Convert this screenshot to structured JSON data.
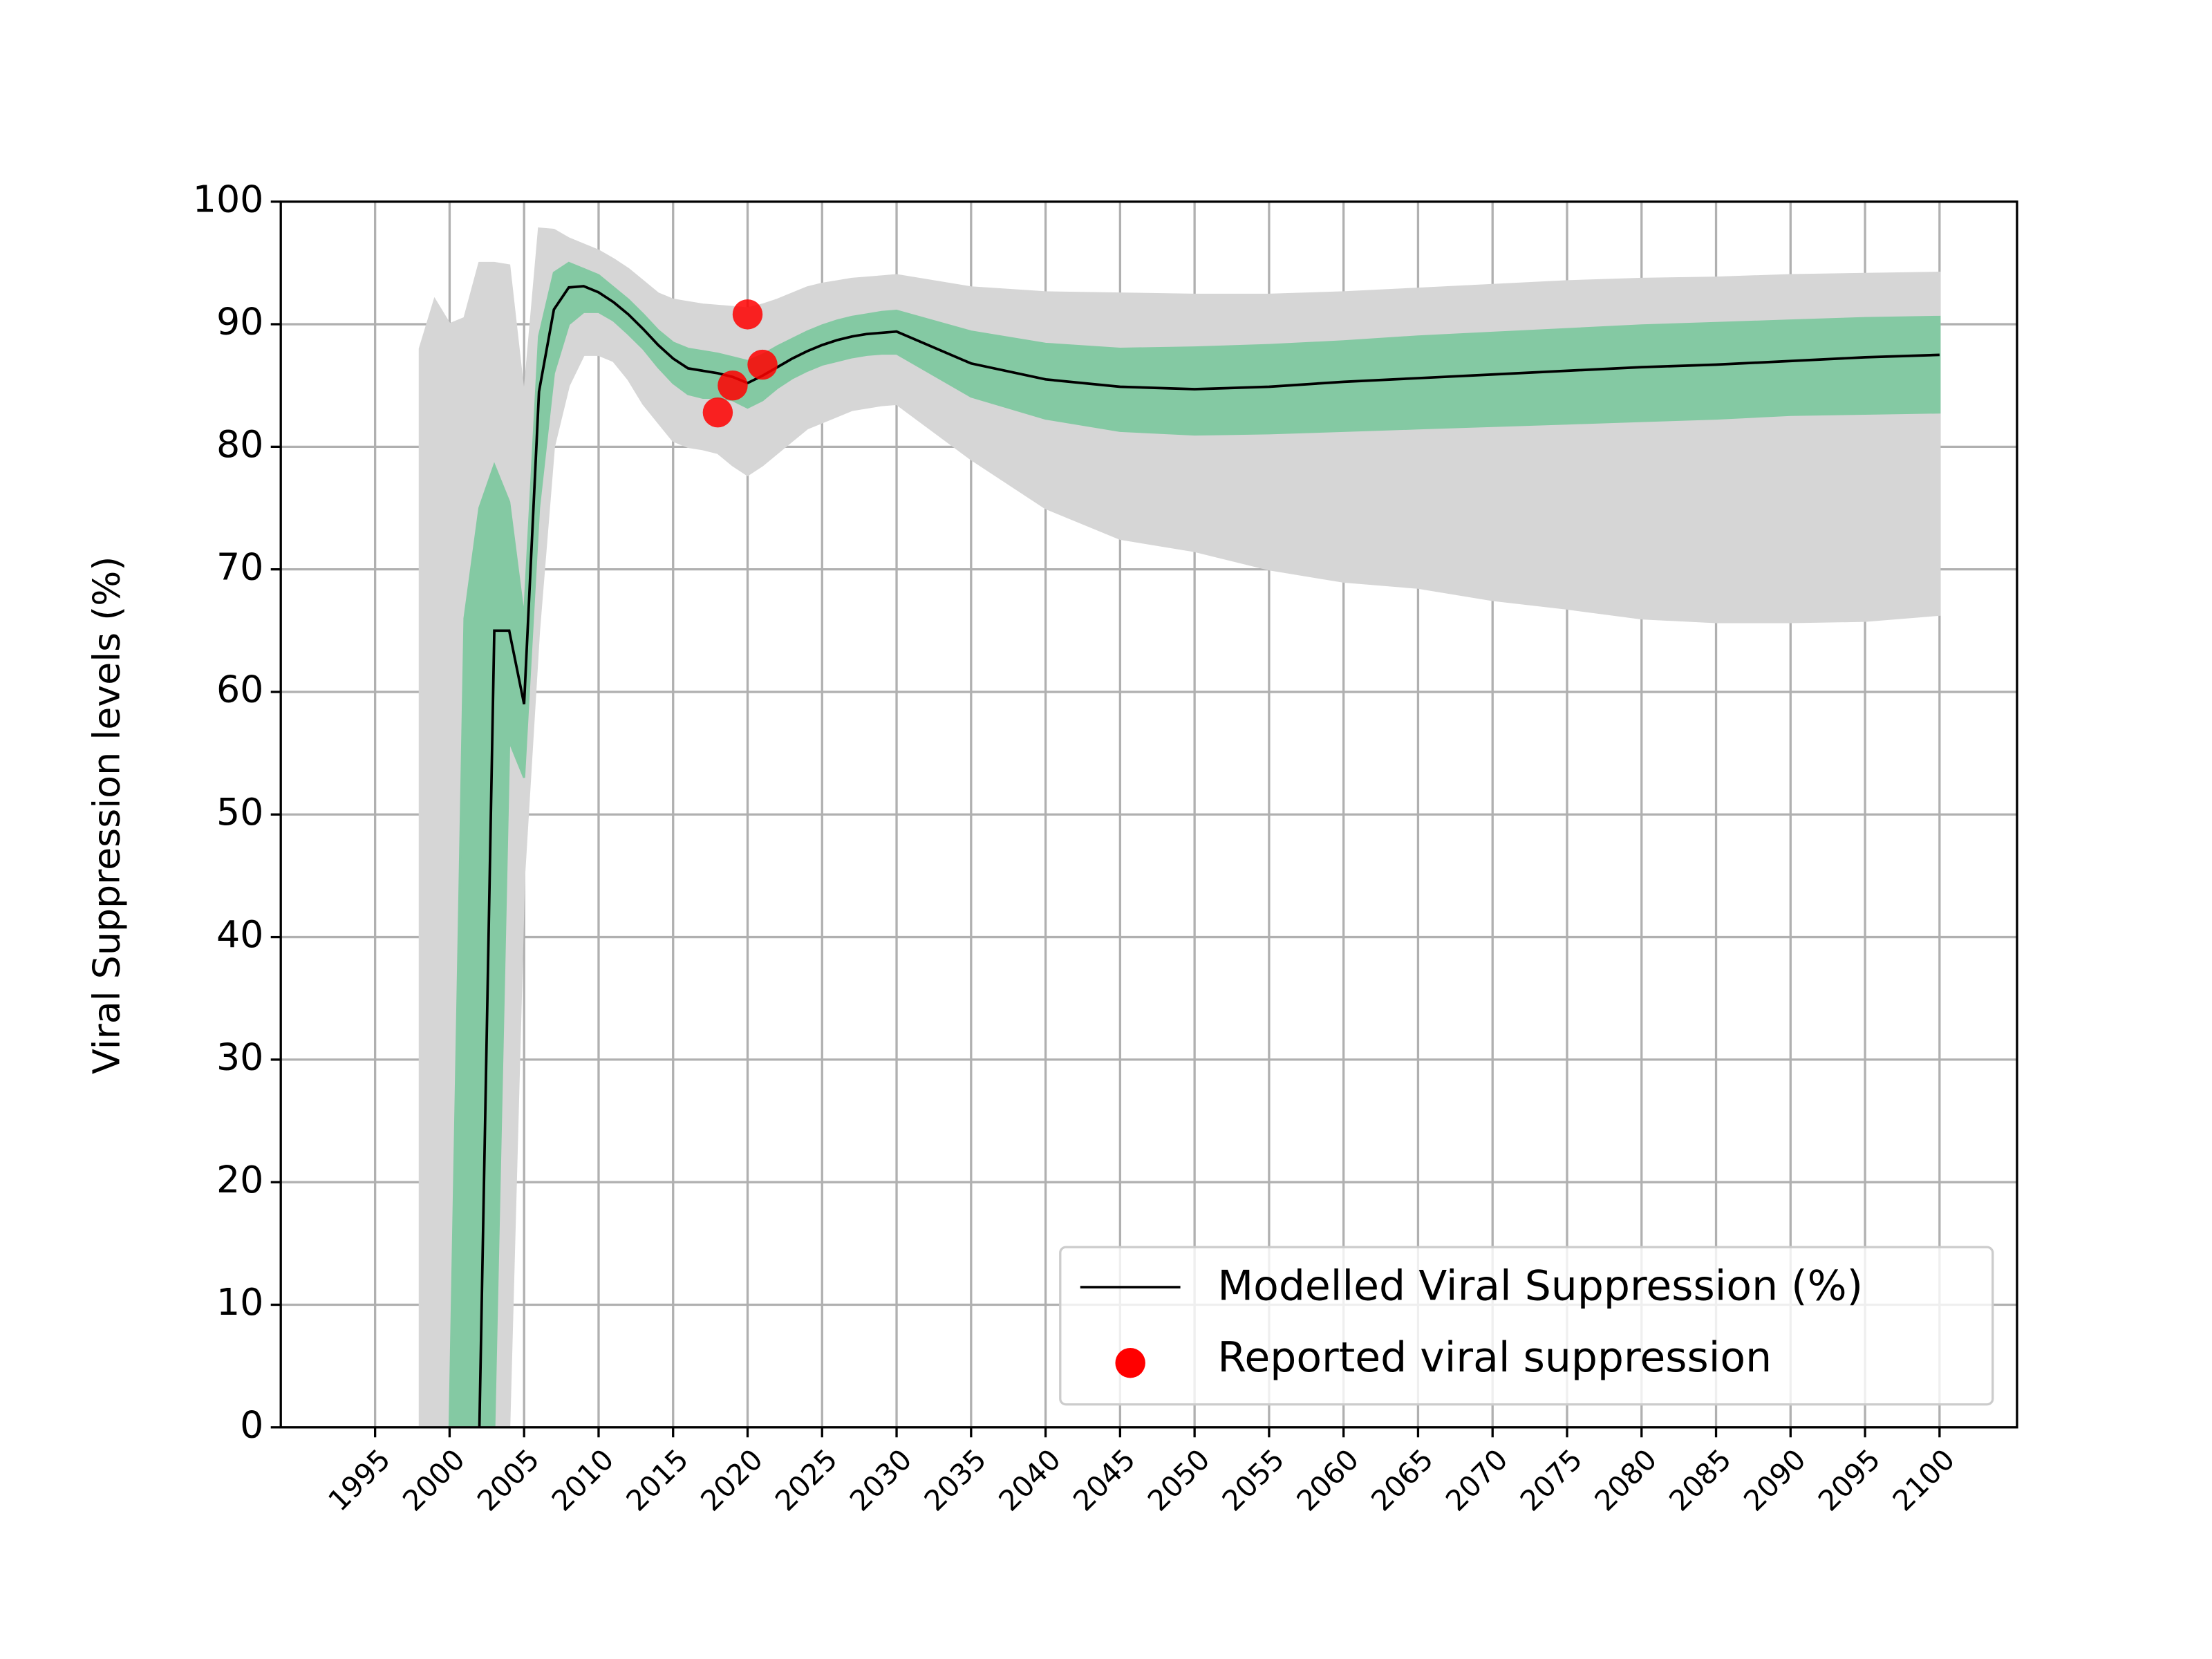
{
  "chart_data": {
    "type": "line",
    "ylabel": "Viral Suppression levels (%)",
    "xlim": [
      1988.67,
      2105.2
    ],
    "ylim": [
      0,
      100
    ],
    "xticks": [
      1995,
      2000,
      2005,
      2010,
      2015,
      2020,
      2025,
      2030,
      2035,
      2040,
      2045,
      2050,
      2055,
      2060,
      2065,
      2070,
      2075,
      2080,
      2085,
      2090,
      2095,
      2100
    ],
    "yticks": [
      0,
      10,
      20,
      30,
      40,
      50,
      60,
      70,
      80,
      90,
      100
    ],
    "grid": true,
    "legend": "lower right",
    "x": [
      2002,
      2003,
      2004,
      2005,
      2006,
      2007,
      2008,
      2009,
      2010,
      2011,
      2012,
      2013,
      2014,
      2015,
      2016,
      2017,
      2018,
      2019,
      2020,
      2021,
      2022,
      2023,
      2024,
      2025,
      2026,
      2027,
      2028,
      2029,
      2030,
      2035,
      2040,
      2045,
      2050,
      2055,
      2060,
      2065,
      2070,
      2075,
      2080,
      2085,
      2090,
      2095,
      2100
    ],
    "series": [
      {
        "name": "Modelled Viral Suppression (%)",
        "color": "#000000",
        "values": [
          0,
          65,
          65,
          59,
          84.5,
          91.2,
          93,
          93.1,
          92.6,
          91.8,
          90.8,
          89.6,
          88.3,
          87.2,
          86.4,
          86.2,
          86,
          85.7,
          85.2,
          85.8,
          86.5,
          87.2,
          87.8,
          88.3,
          88.7,
          89,
          89.2,
          89.3,
          89.4,
          86.8,
          85.5,
          84.9,
          84.7,
          84.9,
          85.3,
          85.6,
          85.9,
          86.2,
          86.5,
          86.7,
          87,
          87.3,
          87.5
        ]
      }
    ],
    "scatter": {
      "name": "Reported viral suppression",
      "color": "#ff0000",
      "x": [
        2018,
        2019,
        2020,
        2021
      ],
      "values": [
        82.8,
        85,
        90.8,
        86.7
      ]
    },
    "bands": [
      {
        "color": "#d6d6d6",
        "x": [
          1998,
          1999,
          2000,
          2001,
          2002,
          2003,
          2004,
          2005,
          2006,
          2007,
          2008,
          2009,
          2010,
          2011,
          2012,
          2013,
          2014,
          2015,
          2016,
          2017,
          2018,
          2019,
          2020,
          2021,
          2022,
          2023,
          2024,
          2025,
          2026,
          2027,
          2028,
          2029,
          2030,
          2035,
          2040,
          2045,
          2050,
          2055,
          2060,
          2065,
          2070,
          2075,
          2080,
          2085,
          2090,
          2095,
          2100
        ],
        "lower": [
          0,
          0,
          0,
          0,
          0,
          0,
          0,
          45,
          65,
          80,
          85,
          87.5,
          87.5,
          87,
          85.5,
          83.5,
          82,
          80.5,
          80,
          79.8,
          79.5,
          78.5,
          77.7,
          78.5,
          79.5,
          80.5,
          81.5,
          82,
          82.5,
          83,
          83.2,
          83.4,
          83.5,
          79,
          75,
          72.5,
          71.5,
          70,
          69,
          68.5,
          67.5,
          66.8,
          66,
          65.7,
          65.7,
          65.8,
          66.3
        ],
        "upper": [
          88,
          92,
          90,
          90.5,
          95,
          95,
          94.8,
          84,
          97.8,
          97.7,
          97,
          96.5,
          96,
          95.3,
          94.5,
          93.5,
          92.5,
          92,
          91.8,
          91.6,
          91.5,
          91.4,
          91.3,
          91.6,
          92,
          92.5,
          93,
          93.3,
          93.5,
          93.7,
          93.8,
          93.9,
          94,
          93,
          92.6,
          92.5,
          92.4,
          92.4,
          92.6,
          92.9,
          93.2,
          93.5,
          93.7,
          93.8,
          94,
          94.1,
          94.2
        ]
      },
      {
        "color": "#84c9a3",
        "x": [
          2000,
          2001,
          2002,
          2003,
          2004,
          2005,
          2006,
          2007,
          2008,
          2009,
          2010,
          2011,
          2012,
          2013,
          2014,
          2015,
          2016,
          2017,
          2018,
          2019,
          2020,
          2021,
          2022,
          2023,
          2024,
          2025,
          2026,
          2027,
          2028,
          2029,
          2030,
          2035,
          2040,
          2045,
          2050,
          2055,
          2060,
          2065,
          2070,
          2075,
          2080,
          2085,
          2090,
          2095,
          2100
        ],
        "lower": [
          0,
          0,
          0,
          0,
          56,
          53,
          75,
          86,
          90,
          91,
          91,
          90.3,
          89.2,
          88,
          86.5,
          85.2,
          84.3,
          84,
          84,
          83.8,
          83.2,
          83.8,
          84.8,
          85.6,
          86.2,
          86.7,
          87,
          87.3,
          87.5,
          87.6,
          87.6,
          84.1,
          82.3,
          81.3,
          81,
          81.1,
          81.3,
          81.5,
          81.7,
          81.9,
          82.1,
          82.3,
          82.6,
          82.7,
          82.8
        ],
        "upper": [
          0,
          66,
          75,
          78.5,
          75.5,
          66,
          89,
          94.2,
          95,
          94.5,
          94,
          93,
          92,
          90.8,
          89.5,
          88.5,
          88,
          87.8,
          87.6,
          87.3,
          87,
          87.5,
          88.2,
          88.8,
          89.4,
          89.9,
          90.3,
          90.6,
          90.8,
          91,
          91.1,
          89.4,
          88.4,
          88,
          88.1,
          88.3,
          88.6,
          89,
          89.3,
          89.6,
          89.9,
          90.1,
          90.3,
          90.5,
          90.6
        ]
      }
    ]
  }
}
